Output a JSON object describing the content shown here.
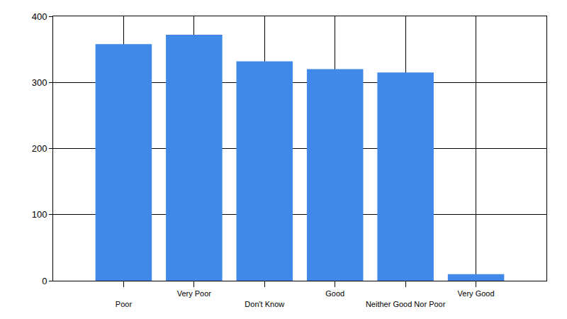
{
  "chart_data": {
    "type": "bar",
    "categories": [
      "Poor",
      "Very Poor",
      "Don't Know",
      "Good",
      "Neither Good Nor Poor",
      "Very Good"
    ],
    "values": [
      358,
      372,
      332,
      320,
      315,
      10
    ],
    "color": "#4189e8",
    "ylim": [
      0,
      400
    ],
    "yticks": [
      0,
      100,
      200,
      300,
      400
    ],
    "grid": true
  }
}
